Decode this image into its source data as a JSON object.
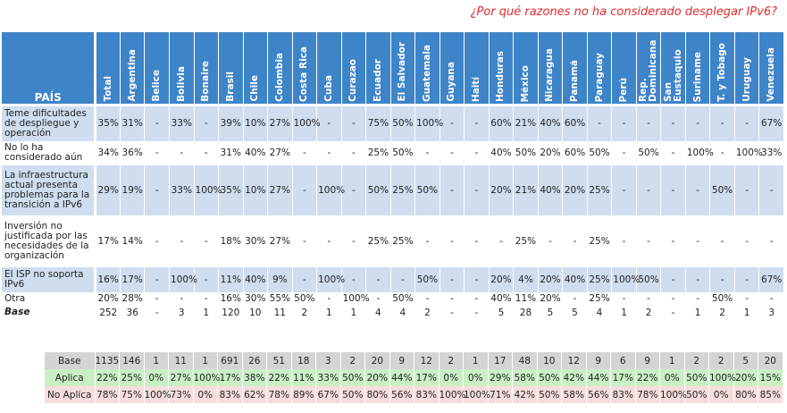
{
  "chart_data": {
    "type": "table",
    "title": "¿Por qué razones no ha considerado desplegar IPv6?",
    "corner_label": "PAÍS",
    "columns": [
      "Total",
      "Argentina",
      "Belice",
      "Bolivia",
      "Bonaire",
      "Brasil",
      "Chile",
      "Colombia",
      "Costa Rica",
      "Cuba",
      "Curazao",
      "Ecuador",
      "El Salvador",
      "Guatemala",
      "Guyana",
      "Haití",
      "Honduras",
      "México",
      "Nicaragua",
      "Panamá",
      "Paraguay",
      "Perú",
      "Rep. Dominicana",
      "San Eustaquio",
      "Suriname",
      "T. y Tobago",
      "Uruguay",
      "Venezuela"
    ],
    "rows": [
      {
        "label": "Teme dificultades de despliegue y operación",
        "values": [
          "35%",
          "31%",
          "-",
          "33%",
          "-",
          "39%",
          "10%",
          "27%",
          "100%",
          "-",
          "-",
          "75%",
          "50%",
          "100%",
          "-",
          "-",
          "60%",
          "21%",
          "40%",
          "60%",
          "-",
          "-",
          "-",
          "-",
          "-",
          "-",
          "-",
          "67%"
        ]
      },
      {
        "label": "No lo ha considerado aún",
        "values": [
          "34%",
          "36%",
          "-",
          "-",
          "-",
          "31%",
          "40%",
          "27%",
          "-",
          "-",
          "-",
          "25%",
          "50%",
          "-",
          "-",
          "-",
          "40%",
          "50%",
          "20%",
          "60%",
          "50%",
          "-",
          "50%",
          "-",
          "100%",
          "-",
          "100%",
          "33%"
        ]
      },
      {
        "label": "La infraestructura actual presenta problemas para la transición a IPv6",
        "values": [
          "29%",
          "19%",
          "-",
          "33%",
          "100%",
          "35%",
          "10%",
          "27%",
          "-",
          "100%",
          "-",
          "50%",
          "25%",
          "50%",
          "-",
          "-",
          "20%",
          "21%",
          "40%",
          "20%",
          "25%",
          "-",
          "-",
          "-",
          "-",
          "50%",
          "-",
          "-"
        ]
      },
      {
        "label": "Inversión no justificada por las necesidades de la organización",
        "values": [
          "17%",
          "14%",
          "-",
          "-",
          "-",
          "18%",
          "30%",
          "27%",
          "-",
          "-",
          "-",
          "25%",
          "25%",
          "-",
          "-",
          "-",
          "-",
          "25%",
          "-",
          "-",
          "25%",
          "-",
          "-",
          "-",
          "-",
          "-",
          "-",
          "-"
        ]
      },
      {
        "label": "El ISP no soporta IPv6",
        "values": [
          "16%",
          "17%",
          "-",
          "100%",
          "-",
          "11%",
          "40%",
          "9%",
          "-",
          "100%",
          "-",
          "-",
          "-",
          "50%",
          "-",
          "-",
          "20%",
          "4%",
          "20%",
          "40%",
          "25%",
          "100%",
          "50%",
          "-",
          "-",
          "-",
          "-",
          "67%"
        ]
      },
      {
        "label": "Otra",
        "values": [
          "20%",
          "28%",
          "-",
          "-",
          "-",
          "16%",
          "30%",
          "55%",
          "50%",
          "-",
          "100%",
          "-",
          "50%",
          "-",
          "-",
          "-",
          "40%",
          "11%",
          "20%",
          "-",
          "25%",
          "-",
          "-",
          "-",
          "-",
          "50%",
          "-",
          "-"
        ]
      },
      {
        "label": "Base",
        "values": [
          "252",
          "36",
          "-",
          "3",
          "1",
          "120",
          "10",
          "11",
          "2",
          "1",
          "1",
          "4",
          "4",
          "2",
          "-",
          "-",
          "5",
          "28",
          "5",
          "5",
          "4",
          "1",
          "2",
          "-",
          "1",
          "2",
          "1",
          "3"
        ]
      }
    ],
    "summary": {
      "rows": [
        {
          "label": "Base",
          "values": [
            "1135",
            "146",
            "1",
            "11",
            "1",
            "691",
            "26",
            "51",
            "18",
            "3",
            "2",
            "20",
            "9",
            "12",
            "2",
            "1",
            "17",
            "48",
            "10",
            "12",
            "9",
            "6",
            "9",
            "1",
            "2",
            "2",
            "5",
            "20"
          ]
        },
        {
          "label": "Aplica",
          "values": [
            "22%",
            "25%",
            "0%",
            "27%",
            "100%",
            "17%",
            "38%",
            "22%",
            "11%",
            "33%",
            "50%",
            "20%",
            "44%",
            "17%",
            "0%",
            "0%",
            "29%",
            "58%",
            "50%",
            "42%",
            "44%",
            "17%",
            "22%",
            "0%",
            "50%",
            "100%",
            "20%",
            "15%"
          ]
        },
        {
          "label": "No Aplica",
          "values": [
            "78%",
            "75%",
            "100%",
            "73%",
            "0%",
            "83%",
            "62%",
            "78%",
            "89%",
            "67%",
            "50%",
            "80%",
            "56%",
            "83%",
            "100%",
            "100%",
            "71%",
            "42%",
            "50%",
            "58%",
            "56%",
            "83%",
            "78%",
            "100%",
            "50%",
            "0%",
            "80%",
            "85%"
          ]
        }
      ]
    }
  }
}
